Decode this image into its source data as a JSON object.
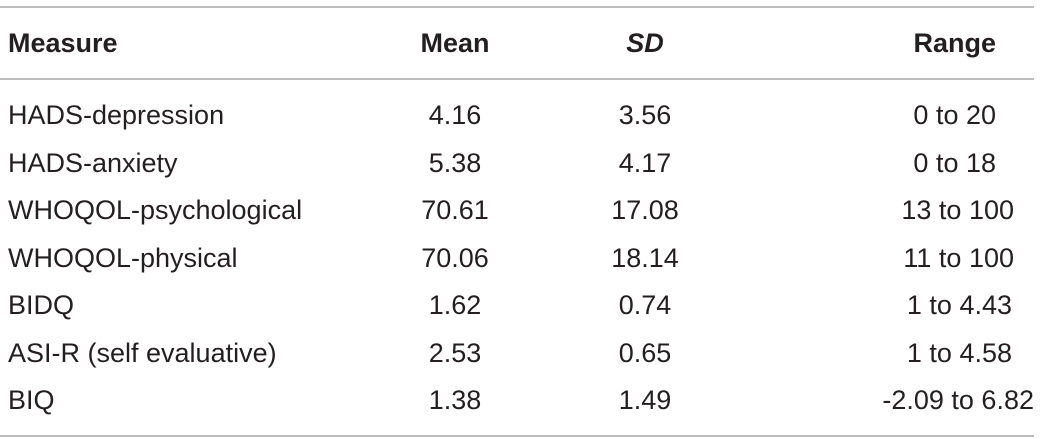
{
  "table": {
    "headers": {
      "measure": "Measure",
      "mean": "Mean",
      "sd": "SD",
      "range": "Range"
    },
    "rows": [
      {
        "measure": "HADS-depression",
        "mean": "4.16",
        "sd": "3.56",
        "range": "0 to 20"
      },
      {
        "measure": "HADS-anxiety",
        "mean": "5.38",
        "sd": "4.17",
        "range": "0 to 18"
      },
      {
        "measure": "WHOQOL-psychological",
        "mean": "70.61",
        "sd": "17.08",
        "range": "13 to 100"
      },
      {
        "measure": "WHOQOL-physical",
        "mean": "70.06",
        "sd": "18.14",
        "range": "11 to 100"
      },
      {
        "measure": "BIDQ",
        "mean": "1.62",
        "sd": "0.74",
        "range": "1 to 4.43"
      },
      {
        "measure": "ASI-R (self evaluative)",
        "mean": "2.53",
        "sd": "0.65",
        "range": "1 to 4.58"
      },
      {
        "measure": "BIQ",
        "mean": "1.38",
        "sd": "1.49",
        "range": "-2.09 to 6.82"
      }
    ]
  }
}
